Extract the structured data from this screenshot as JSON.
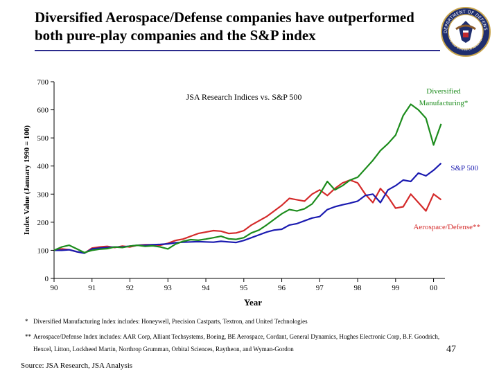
{
  "slide": {
    "title_line1": "Diversified Aerospace/Defense companies have outperformed",
    "title_line2": "both pure-play companies and the S&P index",
    "seal_text": "DEPARTMENT OF DEFENSE",
    "seal_sub": "UNITED STATES OF AMERICA",
    "page_number": "47",
    "source": "Source: JSA Research, JSA Analysis"
  },
  "footnotes": {
    "note1_marker": "*",
    "note1": "Diversified Manufacturing Index includes: Honeywell, Precision Castparts, Textron, and United Technologies",
    "note2_marker": "**",
    "note2_line1": "Aerospace/Defense Index includes: AAR Corp, Alliant Techsystems, Boeing, BE Aerospace, Cordant, General Dynamics, Hughes Electronic Corp, B.F. Goodrich,",
    "note2_line2": "Hexcel, Litton, Lockheed Martin, Northrop Grumman, Orbital Sciences, Raytheon, and Wyman-Gordon"
  },
  "chart_data": {
    "type": "line",
    "title": "JSA Research Indices vs. S&P 500",
    "xlabel": "Year",
    "ylabel": "Index Value (January 1990 = 100)",
    "xlim": [
      1990,
      2000.3
    ],
    "ylim": [
      0,
      700
    ],
    "yticks": [
      0,
      100,
      200,
      300,
      400,
      500,
      600,
      700
    ],
    "xticks": [
      {
        "v": 1990,
        "label": "90"
      },
      {
        "v": 1991,
        "label": "91"
      },
      {
        "v": 1992,
        "label": "92"
      },
      {
        "v": 1993,
        "label": "93"
      },
      {
        "v": 1994,
        "label": "94"
      },
      {
        "v": 1995,
        "label": "95"
      },
      {
        "v": 1996,
        "label": "96"
      },
      {
        "v": 1997,
        "label": "97"
      },
      {
        "v": 1998,
        "label": "98"
      },
      {
        "v": 1999,
        "label": "99"
      },
      {
        "v": 2000,
        "label": "00"
      }
    ],
    "grid": false,
    "series": [
      {
        "name": "Diversified Manufacturing*",
        "color": "#1c8c1c",
        "x": [
          1990.0,
          1990.2,
          1990.4,
          1990.6,
          1990.8,
          1991.0,
          1991.2,
          1991.4,
          1991.6,
          1991.8,
          1992.0,
          1992.2,
          1992.4,
          1992.6,
          1992.8,
          1993.0,
          1993.2,
          1993.4,
          1993.6,
          1993.8,
          1994.0,
          1994.2,
          1994.4,
          1994.6,
          1994.8,
          1995.0,
          1995.2,
          1995.4,
          1995.6,
          1995.8,
          1996.0,
          1996.2,
          1996.4,
          1996.6,
          1996.8,
          1997.0,
          1997.2,
          1997.4,
          1997.6,
          1997.8,
          1998.0,
          1998.2,
          1998.4,
          1998.6,
          1998.8,
          1999.0,
          1999.2,
          1999.4,
          1999.6,
          1999.8,
          2000.0,
          2000.2
        ],
        "y": [
          100,
          112,
          118,
          105,
          92,
          100,
          104,
          106,
          112,
          110,
          115,
          118,
          114,
          116,
          112,
          105,
          122,
          132,
          138,
          136,
          140,
          145,
          150,
          141,
          139,
          145,
          162,
          172,
          190,
          210,
          230,
          245,
          240,
          248,
          265,
          300,
          345,
          315,
          330,
          350,
          360,
          390,
          420,
          455,
          480,
          510,
          580,
          620,
          600,
          570,
          475,
          550
        ]
      },
      {
        "name": "S&P 500",
        "color": "#1a1ab0",
        "x": [
          1990.0,
          1990.2,
          1990.4,
          1990.6,
          1990.8,
          1991.0,
          1991.2,
          1991.4,
          1991.6,
          1991.8,
          1992.0,
          1992.2,
          1992.4,
          1992.6,
          1992.8,
          1993.0,
          1993.2,
          1993.4,
          1993.6,
          1993.8,
          1994.0,
          1994.2,
          1994.4,
          1994.6,
          1994.8,
          1995.0,
          1995.2,
          1995.4,
          1995.6,
          1995.8,
          1996.0,
          1996.2,
          1996.4,
          1996.6,
          1996.8,
          1997.0,
          1997.2,
          1997.4,
          1997.6,
          1997.8,
          1998.0,
          1998.2,
          1998.4,
          1998.6,
          1998.8,
          1999.0,
          1999.2,
          1999.4,
          1999.6,
          1999.8,
          2000.0,
          2000.2
        ],
        "y": [
          100,
          100,
          102,
          95,
          90,
          105,
          108,
          110,
          112,
          112,
          115,
          118,
          118,
          120,
          121,
          123,
          127,
          129,
          130,
          131,
          130,
          129,
          132,
          130,
          128,
          135,
          145,
          155,
          165,
          172,
          175,
          190,
          195,
          205,
          215,
          220,
          245,
          255,
          262,
          268,
          275,
          295,
          300,
          270,
          315,
          330,
          350,
          345,
          375,
          365,
          385,
          410
        ]
      },
      {
        "name": "Aerospace/Defense**",
        "color": "#d42a2a",
        "x": [
          1990.0,
          1990.2,
          1990.4,
          1990.6,
          1990.8,
          1991.0,
          1991.2,
          1991.4,
          1991.6,
          1991.8,
          1992.0,
          1992.2,
          1992.4,
          1992.6,
          1992.8,
          1993.0,
          1993.2,
          1993.4,
          1993.6,
          1993.8,
          1994.0,
          1994.2,
          1994.4,
          1994.6,
          1994.8,
          1995.0,
          1995.2,
          1995.4,
          1995.6,
          1995.8,
          1996.0,
          1996.2,
          1996.4,
          1996.6,
          1996.8,
          1997.0,
          1997.2,
          1997.4,
          1997.6,
          1997.8,
          1998.0,
          1998.2,
          1998.4,
          1998.6,
          1998.8,
          1999.0,
          1999.2,
          1999.4,
          1999.6,
          1999.8,
          2000.0,
          2000.2
        ],
        "y": [
          100,
          105,
          102,
          95,
          90,
          108,
          112,
          114,
          110,
          115,
          112,
          118,
          120,
          120,
          118,
          125,
          135,
          140,
          150,
          160,
          165,
          170,
          168,
          160,
          162,
          170,
          190,
          205,
          220,
          240,
          260,
          285,
          280,
          275,
          300,
          315,
          295,
          320,
          340,
          350,
          340,
          300,
          270,
          320,
          290,
          250,
          255,
          300,
          270,
          240,
          300,
          280
        ]
      }
    ],
    "annotations": [
      {
        "series": "Diversified Manufacturing*",
        "text": "Diversified",
        "text2": "Manufacturing*"
      },
      {
        "series": "S&P 500",
        "text": "S&P 500"
      },
      {
        "series": "Aerospace/Defense**",
        "text": "Aerospace/Defense**"
      }
    ]
  }
}
